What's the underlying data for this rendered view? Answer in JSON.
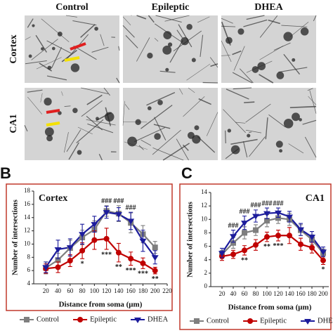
{
  "figure": {
    "column_labels": [
      "Control",
      "Epileptic",
      "DHEA"
    ],
    "row_labels": [
      "Cortex",
      "CA1"
    ]
  },
  "chart_data": [
    {
      "type": "line",
      "panel_label": "B",
      "title": "Cortex",
      "xlabel": "Distance from soma (μm)",
      "ylabel": "Number of intersections",
      "x": [
        20,
        40,
        60,
        80,
        100,
        120,
        140,
        160,
        180,
        200
      ],
      "xlim": [
        0,
        220
      ],
      "xticks": [
        20,
        40,
        60,
        80,
        100,
        120,
        140,
        160,
        180,
        200,
        220
      ],
      "ylim": [
        4,
        18
      ],
      "yticks": [
        4,
        6,
        8,
        10,
        12,
        14,
        16,
        18
      ],
      "legend": "bottom",
      "series": [
        {
          "name": "Control",
          "color": "#7f7f7f",
          "marker": "square",
          "values": [
            6.4,
            7.6,
            9.4,
            11.0,
            12.2,
            15.0,
            14.6,
            13.2,
            11.5,
            9.5
          ],
          "errors": [
            0.9,
            1.0,
            1.2,
            1.1,
            1.3,
            0.8,
            1.2,
            1.5,
            1.3,
            0.9
          ]
        },
        {
          "name": "Epileptic",
          "color": "#c00000",
          "marker": "circle",
          "values": [
            6.3,
            6.5,
            7.5,
            9.0,
            10.6,
            10.8,
            8.7,
            7.8,
            7.1,
            6.0
          ],
          "errors": [
            0.7,
            0.8,
            0.9,
            1.2,
            1.4,
            1.6,
            1.4,
            1.0,
            0.8,
            0.5
          ]
        },
        {
          "name": "DHEA",
          "color": "#1c1c9c",
          "marker": "triangle",
          "values": [
            6.5,
            9.2,
            9.5,
            11.5,
            13.0,
            14.8,
            14.5,
            13.5,
            10.5,
            8.0
          ],
          "errors": [
            0.8,
            1.4,
            1.3,
            1.5,
            1.2,
            0.9,
            1.0,
            1.3,
            1.6,
            1.0
          ]
        }
      ],
      "annotations": [
        {
          "text": "###",
          "x": 120,
          "side": "above"
        },
        {
          "text": "###",
          "x": 140,
          "side": "above"
        },
        {
          "text": "###",
          "x": 160,
          "side": "above"
        },
        {
          "text": "*",
          "x": 80,
          "side": "below"
        },
        {
          "text": "***",
          "x": 120,
          "side": "below"
        },
        {
          "text": "**",
          "x": 140,
          "side": "below"
        },
        {
          "text": "***",
          "x": 160,
          "side": "below"
        },
        {
          "text": "***",
          "x": 180,
          "side": "below"
        },
        {
          "text": "**",
          "x": 200,
          "side": "below"
        }
      ]
    },
    {
      "type": "line",
      "panel_label": "C",
      "title": "CA1",
      "xlabel": "Distance from soma (μm)",
      "ylabel": "Number of intersections",
      "x": [
        20,
        40,
        60,
        80,
        100,
        120,
        140,
        160,
        180,
        200
      ],
      "xlim": [
        0,
        210
      ],
      "xticks": [
        20,
        40,
        60,
        80,
        100,
        120,
        140,
        160,
        180,
        200
      ],
      "ylim": [
        0,
        14
      ],
      "yticks": [
        0,
        2,
        4,
        6,
        8,
        10,
        12,
        14
      ],
      "legend": "bottom",
      "series": [
        {
          "name": "Control",
          "color": "#7f7f7f",
          "marker": "square",
          "values": [
            4.8,
            6.5,
            8.0,
            8.4,
            9.8,
            10.2,
            10.0,
            8.4,
            7.0,
            5.0
          ],
          "errors": [
            0.6,
            0.8,
            0.9,
            0.8,
            0.9,
            0.8,
            0.9,
            0.8,
            0.7,
            0.6
          ]
        },
        {
          "name": "Epileptic",
          "color": "#c00000",
          "marker": "circle",
          "values": [
            4.5,
            4.8,
            5.4,
            6.2,
            7.4,
            7.6,
            7.6,
            6.3,
            5.8,
            3.9
          ],
          "errors": [
            0.6,
            0.6,
            0.7,
            0.8,
            0.7,
            0.8,
            1.2,
            0.9,
            0.8,
            0.6
          ]
        },
        {
          "name": "DHEA",
          "color": "#1c1c9c",
          "marker": "triangle",
          "values": [
            5.0,
            7.5,
            9.5,
            10.5,
            10.9,
            11.0,
            10.4,
            8.5,
            7.4,
            5.2
          ],
          "errors": [
            0.7,
            0.9,
            1.0,
            0.9,
            0.8,
            0.7,
            0.8,
            0.9,
            0.8,
            0.7
          ]
        }
      ],
      "annotations": [
        {
          "text": "###",
          "x": 40,
          "side": "above"
        },
        {
          "text": "###",
          "x": 60,
          "side": "above"
        },
        {
          "text": "###",
          "x": 80,
          "side": "above"
        },
        {
          "text": "###",
          "x": 100,
          "side": "above"
        },
        {
          "text": "###",
          "x": 120,
          "side": "above"
        },
        {
          "text": "**",
          "x": 60,
          "side": "below"
        },
        {
          "text": "**",
          "x": 100,
          "side": "below"
        },
        {
          "text": "***",
          "x": 120,
          "side": "below"
        },
        {
          "text": "*",
          "x": 200,
          "side": "below"
        }
      ]
    }
  ]
}
